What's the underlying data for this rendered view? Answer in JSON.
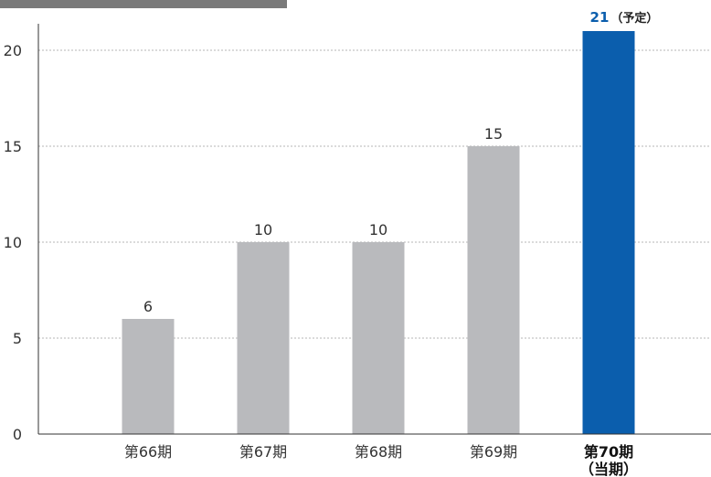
{
  "chart_data": {
    "type": "bar",
    "categories": [
      "第66期",
      "第67期",
      "第68期",
      "第69期",
      "第70期"
    ],
    "category_sublabels": [
      "",
      "",
      "",
      "",
      "（当期）"
    ],
    "values": [
      6,
      10,
      10,
      15,
      21
    ],
    "value_labels": [
      "6",
      "10",
      "10",
      "15",
      "21"
    ],
    "value_notes": [
      "",
      "",
      "",
      "",
      "（予定）"
    ],
    "highlight_index": 4,
    "ylim": [
      0,
      21
    ],
    "yticks": [
      0,
      5,
      10,
      15,
      20
    ],
    "ytick_labels": [
      "0",
      "5",
      "10",
      "15",
      "20"
    ],
    "grid": true,
    "title": "",
    "xlabel": "",
    "ylabel": ""
  },
  "colors": {
    "bar": "#b9babd",
    "highlight_bar": "#0b5ead",
    "header_bar": "#7a7a7a",
    "grid": "#b5b5b5",
    "axis": "#333333"
  }
}
